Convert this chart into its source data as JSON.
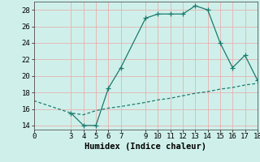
{
  "line1_x": [
    3,
    4,
    5,
    6,
    7,
    9,
    10,
    11,
    12,
    13,
    14,
    15,
    16,
    17,
    18
  ],
  "line1_y": [
    15.5,
    14.0,
    14.0,
    18.5,
    21.0,
    27.0,
    27.5,
    27.5,
    27.5,
    28.5,
    28.0,
    24.0,
    21.0,
    22.5,
    19.5
  ],
  "line2_x": [
    0,
    3,
    4,
    5,
    6,
    7,
    9,
    10,
    11,
    12,
    13,
    14,
    15,
    16,
    17,
    18
  ],
  "line2_y": [
    17.0,
    15.5,
    15.3,
    15.8,
    16.1,
    16.3,
    16.8,
    17.1,
    17.3,
    17.6,
    17.9,
    18.1,
    18.4,
    18.6,
    18.9,
    19.1
  ],
  "line_color": "#1a7a6e",
  "bg_color": "#cff0ea",
  "grid_color": "#e8b0b0",
  "xlabel": "Humidex (Indice chaleur)",
  "xlim": [
    0,
    18
  ],
  "ylim": [
    13.5,
    29
  ],
  "xticks": [
    0,
    3,
    4,
    5,
    6,
    7,
    9,
    10,
    11,
    12,
    13,
    14,
    15,
    16,
    17,
    18
  ],
  "yticks": [
    14,
    16,
    18,
    20,
    22,
    24,
    26,
    28
  ],
  "xlabel_fontsize": 7.5,
  "tick_fontsize": 6.5
}
